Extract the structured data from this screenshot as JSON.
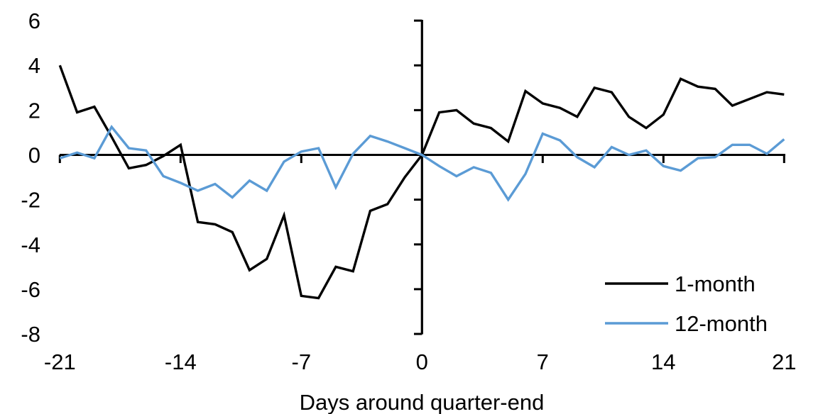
{
  "chart_data": {
    "type": "line",
    "title": "",
    "xlabel": "Days around quarter-end",
    "ylabel": "",
    "x": [
      -21,
      -20,
      -19,
      -18,
      -17,
      -16,
      -15,
      -14,
      -13,
      -12,
      -11,
      -10,
      -9,
      -8,
      -7,
      -6,
      -5,
      -4,
      -3,
      -2,
      -1,
      0,
      1,
      2,
      3,
      4,
      5,
      6,
      7,
      8,
      9,
      10,
      11,
      12,
      13,
      14,
      15,
      16,
      17,
      18,
      19,
      20,
      21
    ],
    "series": [
      {
        "name": "1-month",
        "color": "#000000",
        "values": [
          4.0,
          1.9,
          2.15,
          0.8,
          -0.6,
          -0.45,
          -0.05,
          0.45,
          -3.0,
          -3.1,
          -3.45,
          -5.15,
          -4.65,
          -2.7,
          -6.3,
          -6.4,
          -5.0,
          -5.2,
          -2.5,
          -2.2,
          -1.0,
          0.0,
          1.9,
          2.0,
          1.4,
          1.2,
          0.6,
          2.85,
          2.3,
          2.1,
          1.7,
          3.0,
          2.8,
          1.7,
          1.2,
          1.8,
          3.4,
          3.05,
          2.95,
          2.2,
          2.5,
          2.8,
          2.7
        ]
      },
      {
        "name": "12-month",
        "color": "#5B9BD5",
        "values": [
          -0.15,
          0.1,
          -0.15,
          1.25,
          0.3,
          0.2,
          -0.95,
          -1.25,
          -1.6,
          -1.3,
          -1.9,
          -1.15,
          -1.6,
          -0.3,
          0.15,
          0.3,
          -1.45,
          0.05,
          0.85,
          0.6,
          0.3,
          0.0,
          -0.5,
          -0.95,
          -0.55,
          -0.8,
          -2.0,
          -0.85,
          0.95,
          0.65,
          -0.1,
          -0.55,
          0.35,
          0.0,
          0.2,
          -0.5,
          -0.7,
          -0.15,
          -0.1,
          0.45,
          0.45,
          0.05,
          0.7
        ]
      }
    ],
    "xlim": [
      -21,
      21
    ],
    "ylim": [
      -8,
      6
    ],
    "x_ticks": [
      -21,
      -14,
      -7,
      0,
      7,
      14,
      21
    ],
    "y_ticks": [
      6,
      4,
      2,
      0,
      -2,
      -4,
      -6,
      -8
    ],
    "grid": false,
    "legend_position": "bottom-right",
    "axis_color": "#000000",
    "background_color": "#ffffff"
  }
}
